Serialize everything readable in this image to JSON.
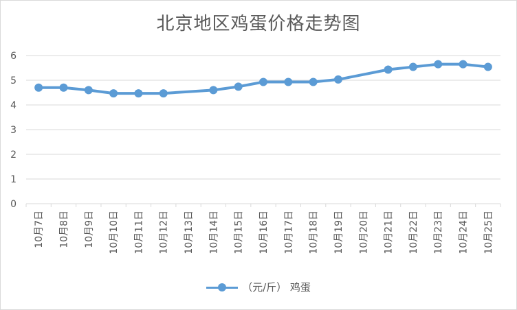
{
  "chart_data": {
    "type": "line",
    "title": "北京地区鸡蛋价格走势图",
    "categories": [
      "10月7日",
      "10月8日",
      "10月9日",
      "10月10日",
      "10月11日",
      "10月12日",
      "10月13日",
      "10月14日",
      "10月15日",
      "10月16日",
      "10月17日",
      "10月18日",
      "10月19日",
      "10月20日",
      "10月21日",
      "10月22日",
      "10月23日",
      "10月24日",
      "10月25日"
    ],
    "series": [
      {
        "name": "（元/斤） 鸡蛋",
        "values": [
          4.7,
          4.7,
          4.6,
          4.47,
          4.47,
          4.47,
          null,
          4.6,
          4.74,
          4.93,
          4.93,
          4.93,
          5.03,
          null,
          5.43,
          5.54,
          5.65,
          5.65,
          5.54
        ],
        "color": "#5b9bd5"
      }
    ],
    "ylim": [
      0,
      6
    ],
    "yticks": [
      "0",
      "1",
      "2",
      "3",
      "4",
      "5",
      "6"
    ],
    "grid": true,
    "legend": "bottom"
  }
}
